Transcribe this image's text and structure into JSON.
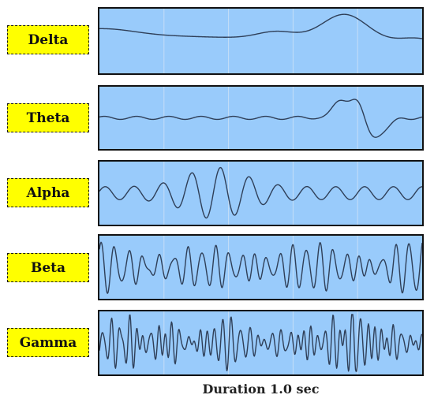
{
  "bands": [
    {
      "id": "delta",
      "label": "Delta"
    },
    {
      "id": "theta",
      "label": "Theta"
    },
    {
      "id": "alpha",
      "label": "Alpha"
    },
    {
      "id": "beta",
      "label": "Beta"
    },
    {
      "id": "gamma",
      "label": "Gamma"
    }
  ],
  "caption": "Duration 1.0 sec",
  "colors": {
    "label_fill": "#ffff00",
    "panel_fill": "#99cbfb",
    "wave_stroke": "#2f3f58"
  }
}
